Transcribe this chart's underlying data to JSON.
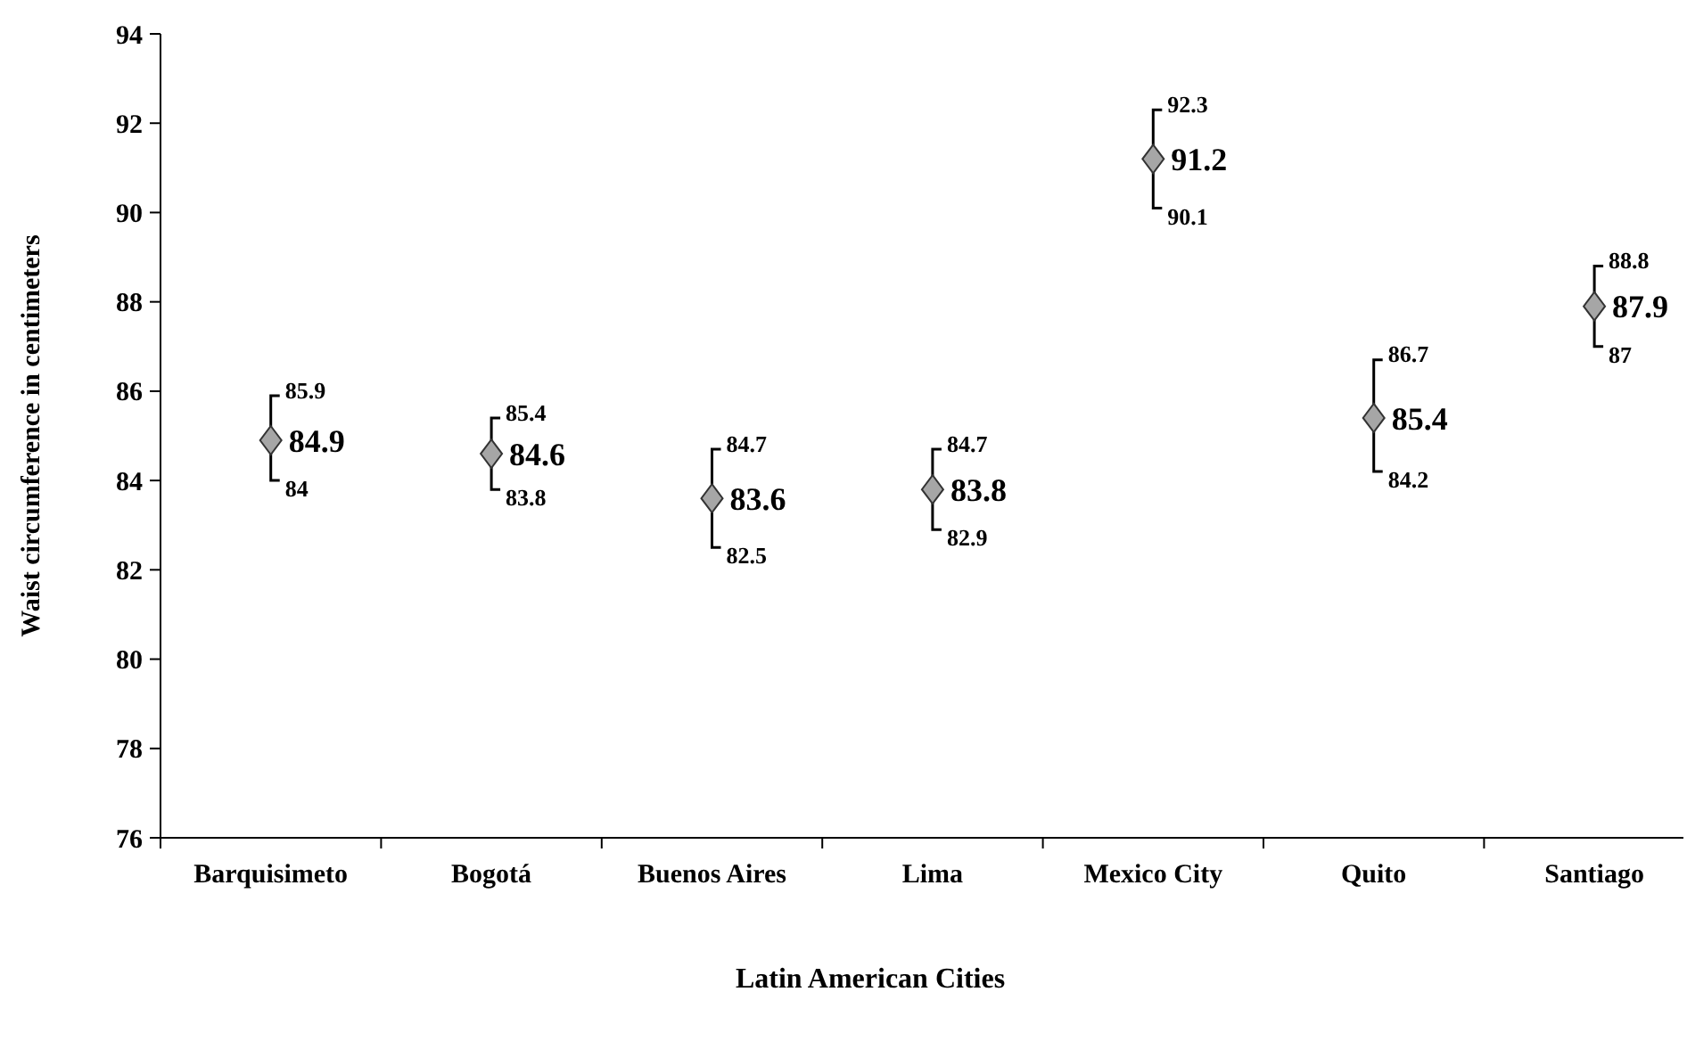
{
  "chart_data": {
    "type": "scatter",
    "xlabel": "Latin American Cities",
    "ylabel": "Waist circumference in centimeters",
    "categories": [
      "Barquisimeto",
      "Bogotá",
      "Buenos Aires",
      "Lima",
      "Mexico City",
      "Quito",
      "Santiago"
    ],
    "values": [
      84.9,
      84.6,
      83.6,
      83.8,
      91.2,
      85.4,
      87.9
    ],
    "errors": [
      [
        84,
        85.9
      ],
      [
        83.8,
        85.4
      ],
      [
        82.5,
        84.7
      ],
      [
        82.9,
        84.7
      ],
      [
        90.1,
        92.3
      ],
      [
        84.2,
        86.7
      ],
      [
        87,
        88.8
      ]
    ],
    "annotations": [
      {
        "text": "85.9",
        "x": "Barquisimeto",
        "y": 85.9
      },
      {
        "text": "84",
        "x": "Barquisimeto",
        "y": 84
      },
      {
        "text": "85.4",
        "x": "Bogotá",
        "y": 85.4
      },
      {
        "text": "83.8",
        "x": "Bogotá",
        "y": 83.8
      },
      {
        "text": "84.7",
        "x": "Buenos Aires",
        "y": 84.7
      },
      {
        "text": "82.5",
        "x": "Buenos Aires",
        "y": 82.5
      },
      {
        "text": "84.7",
        "x": "Lima",
        "y": 84.7
      },
      {
        "text": "82.9",
        "x": "Lima",
        "y": 82.9
      },
      {
        "text": "92.3",
        "x": "Mexico City",
        "y": 92.3
      },
      {
        "text": "90.1",
        "x": "Mexico City",
        "y": 90.1
      },
      {
        "text": "86.7",
        "x": "Quito",
        "y": 86.7
      },
      {
        "text": "84.2",
        "x": "Quito",
        "y": 84.2
      },
      {
        "text": "88.8",
        "x": "Santiago",
        "y": 88.8
      },
      {
        "text": "87",
        "x": "Santiago",
        "y": 87
      }
    ],
    "color": "#a6a6a6",
    "marker": "diamond",
    "data_labels": true,
    "ylim": [
      76,
      94
    ],
    "yticks": [
      76,
      78,
      80,
      82,
      84,
      86,
      88,
      90,
      92,
      94
    ]
  }
}
